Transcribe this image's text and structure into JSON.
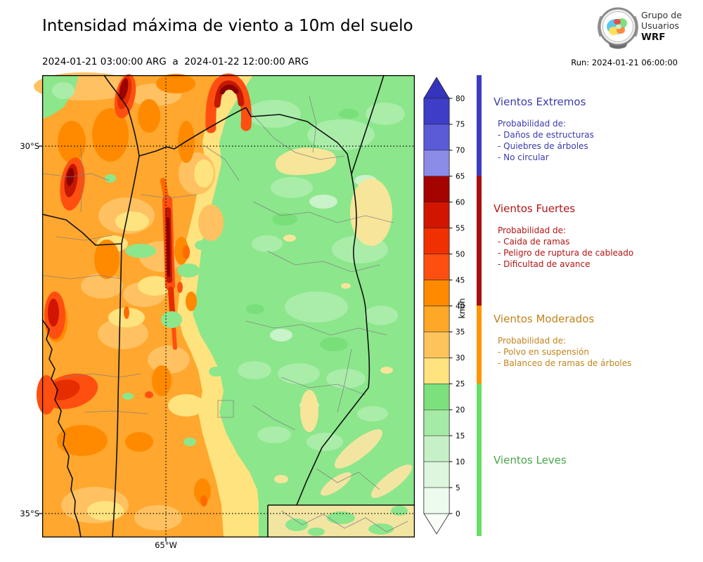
{
  "header": {
    "title": "Intensidad máxima de viento a 10m del suelo",
    "date_range": "2024-01-21 03:00:00 ARG  a  2024-01-22 12:00:00 ARG",
    "run": "Run: 2024-01-21 06:00:00",
    "logo": {
      "line1": "Grupo de",
      "line2": "Usuarios",
      "line3": "WRF"
    }
  },
  "map_axes": {
    "lat_labels": [
      "30°S",
      "35°S"
    ],
    "lon_label": "65°W"
  },
  "colorbar": {
    "unit": "km/h",
    "tick_values": [
      80,
      75,
      70,
      65,
      60,
      55,
      50,
      45,
      40,
      35,
      30,
      25,
      20,
      15,
      10,
      5,
      0
    ],
    "over_color": "#3434BE",
    "under_color": "#F8FDF8",
    "segments": [
      {
        "from": 0,
        "to": 5,
        "color": "#EDFBED"
      },
      {
        "from": 5,
        "to": 10,
        "color": "#DDF6DD"
      },
      {
        "from": 10,
        "to": 15,
        "color": "#C6F1C6"
      },
      {
        "from": 15,
        "to": 20,
        "color": "#A5EAA5"
      },
      {
        "from": 20,
        "to": 25,
        "color": "#7CE07C"
      },
      {
        "from": 25,
        "to": 30,
        "color": "#FFE37E"
      },
      {
        "from": 30,
        "to": 35,
        "color": "#FFC35C"
      },
      {
        "from": 35,
        "to": 40,
        "color": "#FFA726"
      },
      {
        "from": 40,
        "to": 45,
        "color": "#FF8A00"
      },
      {
        "from": 45,
        "to": 50,
        "color": "#FF4F10"
      },
      {
        "from": 50,
        "to": 55,
        "color": "#F03000"
      },
      {
        "from": 55,
        "to": 60,
        "color": "#D21500"
      },
      {
        "from": 60,
        "to": 65,
        "color": "#A50300"
      },
      {
        "from": 65,
        "to": 70,
        "color": "#8B8BE8"
      },
      {
        "from": 70,
        "to": 75,
        "color": "#5B5BD8"
      },
      {
        "from": 75,
        "to": 80,
        "color": "#3D3DC8"
      }
    ]
  },
  "category_bar": [
    {
      "label": "Vientos Extremos",
      "color": "#3C3CC2",
      "range": [
        65,
        85
      ]
    },
    {
      "label": "Vientos Fuertes",
      "color": "#A81010",
      "range": [
        40,
        65
      ]
    },
    {
      "label": "Vientos Moderados",
      "color": "#FF9500",
      "range": [
        25,
        40
      ]
    },
    {
      "label": "Vientos Leves",
      "color": "#66DD66",
      "range": [
        0,
        25
      ]
    }
  ],
  "legend": {
    "sections": [
      {
        "title": "Vientos Extremos",
        "color": "#3A3AAF",
        "intro": "Probabilidad de:",
        "items": [
          "- Daños de estructuras",
          "- Quiebres de árboles",
          "- No circular"
        ]
      },
      {
        "title": "Vientos Fuertes",
        "color": "#B31414",
        "intro": "Probabilidad de:",
        "items": [
          "- Caida de ramas",
          "- Peligro de ruptura de cableado",
          "- Dificultad de avance"
        ]
      },
      {
        "title": "Vientos Moderados",
        "color": "#C2841C",
        "intro": "Probabilidad de:",
        "items": [
          "- Polvo en suspensión",
          "- Balanceo de ramas de árboles"
        ]
      },
      {
        "title": "Vientos Leves",
        "color": "#4AA64A",
        "intro": "",
        "items": []
      }
    ]
  },
  "palette": {
    "green_base": "#8CE68C",
    "green_light": "#A9EDA9",
    "green_pale": "#C9F3C9",
    "green_dark": "#79DF79",
    "yellow": "#FFE37E",
    "tan": "#F2E5A2",
    "orange": "#FFA72E",
    "orange_light": "#FFC161",
    "orange_deep": "#FF8A00",
    "red_orange": "#FF4F10",
    "red": "#E62D00",
    "red_dark": "#C41800",
    "red_darkest": "#8A0000"
  },
  "chart_data": {
    "type": "heatmap",
    "title": "Intensidad máxima de viento a 10m del suelo",
    "subtitle": "2024-01-21 03:00:00 ARG  a  2024-01-22 12:00:00 ARG",
    "run": "Run: 2024-01-21 06:00:00",
    "units": "km/h",
    "colorbar_levels": [
      0,
      5,
      10,
      15,
      20,
      25,
      30,
      35,
      40,
      45,
      50,
      55,
      60,
      65,
      70,
      75,
      80
    ],
    "colorbar_extend": "both",
    "gridlines": {
      "lat": [
        "30°S",
        "35°S"
      ],
      "lon": [
        "65°W"
      ]
    },
    "categories": [
      {
        "label": "Vientos Leves",
        "range_kmh": [
          0,
          25
        ]
      },
      {
        "label": "Vientos Moderados",
        "range_kmh": [
          25,
          40
        ]
      },
      {
        "label": "Vientos Fuertes",
        "range_kmh": [
          40,
          65
        ]
      },
      {
        "label": "Vientos Extremos",
        "range_kmh": [
          65,
          85
        ]
      }
    ],
    "spatial_summary": [
      {
        "region": "west / northwest (left of ~65°W)",
        "max_wind_kmh": "35-50 widespread"
      },
      {
        "region": "mountain streaks NW and along 65°W (sierras)",
        "max_wind_kmh": "50-65 elongated maxima"
      },
      {
        "region": "central-north hook feature near top",
        "max_wind_kmh": "45-60"
      },
      {
        "region": "southwest blobs",
        "max_wind_kmh": "45-55"
      },
      {
        "region": "east half (plains)",
        "max_wind_kmh": "10-25"
      },
      {
        "region": "south-center and scattered eastern patches",
        "max_wind_kmh": "25-35"
      }
    ]
  }
}
